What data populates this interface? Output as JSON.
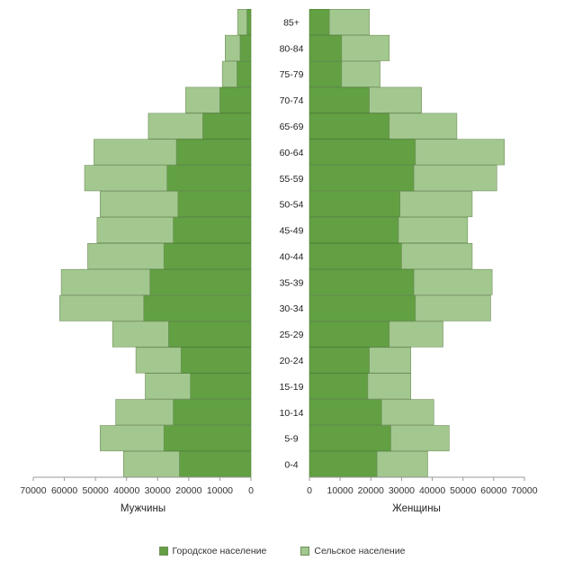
{
  "chart_data": {
    "type": "bar",
    "orientation": "horizontal",
    "layout": "population-pyramid",
    "stacked": true,
    "categories": [
      "0-4",
      "5-9",
      "10-14",
      "15-19",
      "20-24",
      "25-29",
      "30-34",
      "35-39",
      "40-44",
      "45-49",
      "50-54",
      "55-59",
      "60-64",
      "65-69",
      "70-74",
      "75-79",
      "80-84",
      "85+"
    ],
    "series": [
      {
        "name": "Городское население",
        "color": "#62a043",
        "male": [
          23000,
          28000,
          25000,
          19500,
          22500,
          26500,
          34500,
          32500,
          28000,
          25000,
          23500,
          27000,
          24000,
          15500,
          10000,
          4500,
          3500,
          1300
        ],
        "female": [
          22000,
          26500,
          23500,
          19000,
          19500,
          26000,
          34500,
          34000,
          30000,
          29000,
          29500,
          34000,
          34500,
          26000,
          19500,
          10500,
          10500,
          6500
        ]
      },
      {
        "name": "Сельское население",
        "color": "#a3c88f",
        "male": [
          18000,
          20500,
          18500,
          14500,
          14500,
          18000,
          27000,
          28500,
          24500,
          24500,
          25000,
          26500,
          26500,
          17500,
          11000,
          4700,
          4800,
          3000
        ],
        "female": [
          16500,
          19000,
          17000,
          14000,
          13500,
          17500,
          24500,
          25500,
          23000,
          22500,
          23500,
          27000,
          29000,
          22000,
          17000,
          12500,
          15500,
          13000
        ]
      }
    ],
    "panels": [
      {
        "key": "male",
        "xlabel": "Мужчины",
        "direction": "reversed"
      },
      {
        "key": "female",
        "xlabel": "Женщины",
        "direction": "normal"
      }
    ],
    "xlim": [
      0,
      70000
    ],
    "xticks": [
      0,
      10000,
      20000,
      30000,
      40000,
      50000,
      60000,
      70000
    ],
    "grid": false,
    "legend_position": "bottom"
  }
}
